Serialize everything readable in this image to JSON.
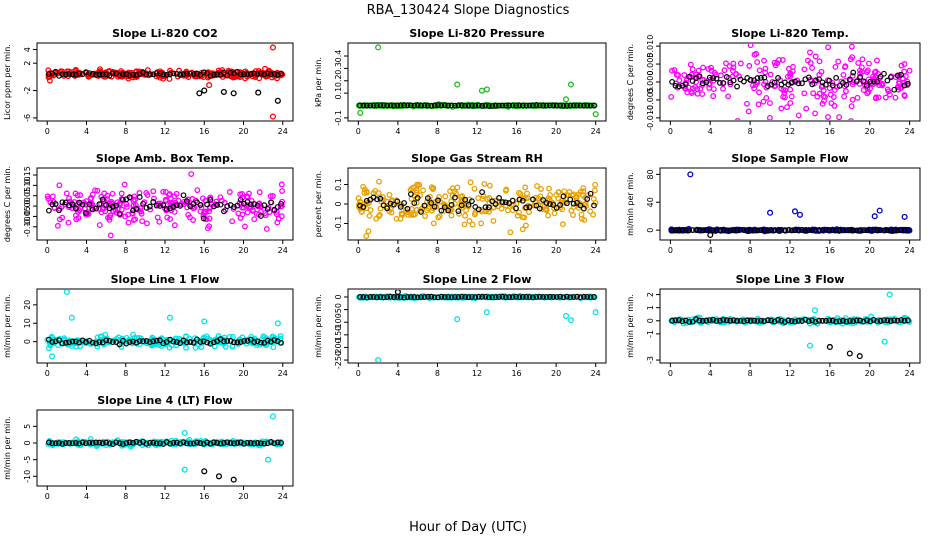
{
  "figure": {
    "title": "RBA_130424  Slope Diagnostics",
    "xlabel": "Hour of Day (UTC)"
  },
  "chart_data": [
    {
      "type": "scatter",
      "title": "Slope Li-820 CO2",
      "ylabel": "Licor ppm per min.",
      "color": "#ff0000",
      "xlim": [
        0,
        24
      ],
      "ylim": [
        -6,
        4.5
      ],
      "yticks": [
        -6,
        -2,
        2,
        4
      ],
      "ytick_labels": [
        "-6",
        "-2",
        "2",
        "4"
      ],
      "xticks": [
        0,
        4,
        8,
        12,
        16,
        20,
        24
      ],
      "xtick_labels": [
        "0",
        "4",
        "8",
        "12",
        "16",
        "20",
        "24"
      ],
      "center": 0.4,
      "spread": 0.5,
      "outliers": [
        {
          "x": 15.5,
          "y": -2.4,
          "c": "black"
        },
        {
          "x": 16,
          "y": -2.0,
          "c": "black"
        },
        {
          "x": 18,
          "y": -2.2,
          "c": "black"
        },
        {
          "x": 19,
          "y": -2.4,
          "c": "black"
        },
        {
          "x": 21.5,
          "y": -2.3,
          "c": "black"
        },
        {
          "x": 23.5,
          "y": -3.5,
          "c": "black"
        },
        {
          "x": 23,
          "y": 4.3,
          "c": "color"
        },
        {
          "x": 23,
          "y": -5.8,
          "c": "color"
        },
        {
          "x": 16.5,
          "y": -1.2,
          "c": "color"
        }
      ]
    },
    {
      "type": "scatter",
      "title": "Slope Li-820 Pressure",
      "ylabel": "kPa per min.",
      "color": "#22bb22",
      "xlim": [
        0,
        24
      ],
      "ylim": [
        -0.1,
        0.48
      ],
      "yticks": [
        -0.1,
        0.1,
        0.2,
        0.3,
        0.4
      ],
      "ytick_labels": [
        "-0.1",
        "0.1",
        "0.2",
        "0.3",
        "0.4"
      ],
      "xticks": [
        0,
        4,
        8,
        12,
        16,
        20,
        24
      ],
      "xtick_labels": [
        "0",
        "4",
        "8",
        "12",
        "16",
        "20",
        "24"
      ],
      "center": 0.0,
      "spread": 0.006,
      "outliers": [
        {
          "x": 2,
          "y": 0.47,
          "c": "color"
        },
        {
          "x": 10,
          "y": 0.17,
          "c": "color"
        },
        {
          "x": 12.5,
          "y": 0.12,
          "c": "color"
        },
        {
          "x": 13,
          "y": 0.13,
          "c": "color"
        },
        {
          "x": 21.5,
          "y": 0.17,
          "c": "color"
        },
        {
          "x": 21,
          "y": 0.05,
          "c": "color"
        },
        {
          "x": 24,
          "y": -0.07,
          "c": "color"
        },
        {
          "x": 0.2,
          "y": -0.06,
          "c": "color"
        }
      ]
    },
    {
      "type": "scatter",
      "title": "Slope Li-820 Temp.",
      "ylabel": "degrees C per min.",
      "color": "#ff00ff",
      "xlim": [
        0,
        24
      ],
      "ylim": [
        -0.01,
        0.01
      ],
      "yticks": [
        -0.01,
        -0.005,
        0,
        0.005,
        0.01
      ],
      "ytick_labels": [
        "-0.010",
        "-0.005",
        "0.000",
        "0.005",
        "0.010"
      ],
      "xticks": [
        0,
        4,
        8,
        12,
        16,
        20,
        24
      ],
      "xtick_labels": [
        "0",
        "4",
        "8",
        "12",
        "16",
        "20",
        "24"
      ],
      "center": 0.0,
      "spread": 0.0045,
      "outliers": []
    },
    {
      "type": "scatter",
      "title": "Slope Amb. Box Temp.",
      "ylabel": "degrees C per min.",
      "color": "#ff00ff",
      "xlim": [
        0,
        24
      ],
      "ylim": [
        -0.15,
        0.17
      ],
      "yticks": [
        -0.1,
        -0.05,
        0,
        0.05,
        0.1,
        0.15
      ],
      "ytick_labels": [
        "-0.10",
        "-0.05",
        "0.00",
        "0.05",
        "0.10",
        "0.15"
      ],
      "xticks": [
        0,
        4,
        8,
        12,
        16,
        20,
        24
      ],
      "xtick_labels": [
        "0",
        "4",
        "8",
        "12",
        "16",
        "20",
        "24"
      ],
      "center": 0.0,
      "spread": 0.08,
      "outliers": []
    },
    {
      "type": "scatter",
      "title": "Slope Gas Stream RH",
      "ylabel": "percent per min.",
      "color": "#e8a000",
      "xlim": [
        0,
        24
      ],
      "ylim": [
        -0.17,
        0.17
      ],
      "yticks": [
        -0.1,
        0,
        0.1
      ],
      "ytick_labels": [
        "-0.1",
        "0",
        "0.1"
      ],
      "xticks": [
        0,
        4,
        8,
        12,
        16,
        20,
        24
      ],
      "xtick_labels": [
        "0",
        "4",
        "8",
        "12",
        "16",
        "20",
        "24"
      ],
      "center": 0.0,
      "spread": 0.09,
      "outliers": []
    },
    {
      "type": "scatter",
      "title": "Slope Sample Flow",
      "ylabel": "ml/min per min.",
      "color": "#0000cc",
      "xlim": [
        0,
        24
      ],
      "ylim": [
        -10,
        85
      ],
      "yticks": [
        0,
        40,
        80
      ],
      "ytick_labels": [
        "0",
        "40",
        "80"
      ],
      "xticks": [
        0,
        4,
        8,
        12,
        16,
        20,
        24
      ],
      "xtick_labels": [
        "0",
        "4",
        "8",
        "12",
        "16",
        "20",
        "24"
      ],
      "center": 0.0,
      "spread": 1.0,
      "outliers": [
        {
          "x": 2,
          "y": 80,
          "c": "color"
        },
        {
          "x": 10,
          "y": 25,
          "c": "color"
        },
        {
          "x": 12.5,
          "y": 27,
          "c": "color"
        },
        {
          "x": 13,
          "y": 22,
          "c": "color"
        },
        {
          "x": 21,
          "y": 28,
          "c": "color"
        },
        {
          "x": 20.5,
          "y": 20,
          "c": "color"
        },
        {
          "x": 23.5,
          "y": 19,
          "c": "color"
        },
        {
          "x": 4,
          "y": -7,
          "c": "black"
        }
      ]
    },
    {
      "type": "scatter",
      "title": "Slope Line 1 Flow",
      "ylabel": "ml/min per min.",
      "color": "#00e5e5",
      "xlim": [
        0,
        24
      ],
      "ylim": [
        -10,
        27
      ],
      "yticks": [
        0,
        10,
        20
      ],
      "ytick_labels": [
        "0",
        "10",
        "20"
      ],
      "xticks": [
        0,
        4,
        8,
        12,
        16,
        20,
        24
      ],
      "xtick_labels": [
        "0",
        "4",
        "8",
        "12",
        "16",
        "20",
        "24"
      ],
      "center": 0.0,
      "spread": 2.5,
      "outliers": [
        {
          "x": 2,
          "y": 27,
          "c": "color"
        },
        {
          "x": 2.5,
          "y": 13,
          "c": "color"
        },
        {
          "x": 12.5,
          "y": 13,
          "c": "color"
        },
        {
          "x": 16,
          "y": 11,
          "c": "color"
        },
        {
          "x": 23.5,
          "y": 10,
          "c": "color"
        },
        {
          "x": 0.5,
          "y": -8,
          "c": "color"
        }
      ]
    },
    {
      "type": "scatter",
      "title": "Slope Line 2 Flow",
      "ylabel": "ml/min per min.",
      "color": "#00e5e5",
      "xlim": [
        0,
        24
      ],
      "ylim": [
        -250,
        20
      ],
      "yticks": [
        -250,
        -200,
        -150,
        -100,
        -50,
        0
      ],
      "ytick_labels": [
        "-250",
        "-200",
        "-150",
        "-100",
        "-50",
        "0"
      ],
      "xticks": [
        0,
        4,
        8,
        12,
        16,
        20,
        24
      ],
      "xtick_labels": [
        "0",
        "4",
        "8",
        "12",
        "16",
        "20",
        "24"
      ],
      "center": 0.0,
      "spread": 3.0,
      "outliers": [
        {
          "x": 2,
          "y": -250,
          "c": "color"
        },
        {
          "x": 10,
          "y": -88,
          "c": "color"
        },
        {
          "x": 13,
          "y": -60,
          "c": "color"
        },
        {
          "x": 21,
          "y": -75,
          "c": "color"
        },
        {
          "x": 21.5,
          "y": -92,
          "c": "color"
        },
        {
          "x": 24,
          "y": -60,
          "c": "color"
        },
        {
          "x": 4,
          "y": 20,
          "c": "black"
        }
      ]
    },
    {
      "type": "scatter",
      "title": "Slope Line 3 Flow",
      "ylabel": "ml/min per min.",
      "color": "#00e5e5",
      "xlim": [
        0,
        24
      ],
      "ylim": [
        -3,
        2.2
      ],
      "yticks": [
        -3,
        -1,
        0,
        1,
        2
      ],
      "ytick_labels": [
        "-3",
        "-1",
        "0",
        "1",
        "2"
      ],
      "xticks": [
        0,
        4,
        8,
        12,
        16,
        20,
        24
      ],
      "xtick_labels": [
        "0",
        "4",
        "8",
        "12",
        "16",
        "20",
        "24"
      ],
      "center": 0.0,
      "spread": 0.15,
      "outliers": [
        {
          "x": 14.5,
          "y": 0.8,
          "c": "color"
        },
        {
          "x": 22,
          "y": 2.0,
          "c": "color"
        },
        {
          "x": 14,
          "y": -1.9,
          "c": "color"
        },
        {
          "x": 21.5,
          "y": -1.6,
          "c": "color"
        },
        {
          "x": 16,
          "y": -2.0,
          "c": "black"
        },
        {
          "x": 18,
          "y": -2.5,
          "c": "black"
        },
        {
          "x": 19,
          "y": -2.7,
          "c": "black"
        }
      ]
    },
    {
      "type": "scatter",
      "title": "Slope Line 4 (LT) Flow",
      "ylabel": "ml/min per min.",
      "color": "#00e5e5",
      "xlim": [
        0,
        24
      ],
      "ylim": [
        -12,
        9
      ],
      "yticks": [
        -10,
        -5,
        0,
        5
      ],
      "ytick_labels": [
        "-10",
        "-5",
        "0",
        "5"
      ],
      "xticks": [
        0,
        4,
        8,
        12,
        16,
        20,
        24
      ],
      "xtick_labels": [
        "0",
        "4",
        "8",
        "12",
        "16",
        "20",
        "24"
      ],
      "center": 0.0,
      "spread": 0.6,
      "outliers": [
        {
          "x": 23,
          "y": 8,
          "c": "color"
        },
        {
          "x": 14,
          "y": 3,
          "c": "color"
        },
        {
          "x": 14,
          "y": -8,
          "c": "color"
        },
        {
          "x": 22.5,
          "y": -5,
          "c": "color"
        },
        {
          "x": 16,
          "y": -8.5,
          "c": "black"
        },
        {
          "x": 17.5,
          "y": -10,
          "c": "black"
        },
        {
          "x": 19,
          "y": -11,
          "c": "black"
        }
      ]
    }
  ]
}
